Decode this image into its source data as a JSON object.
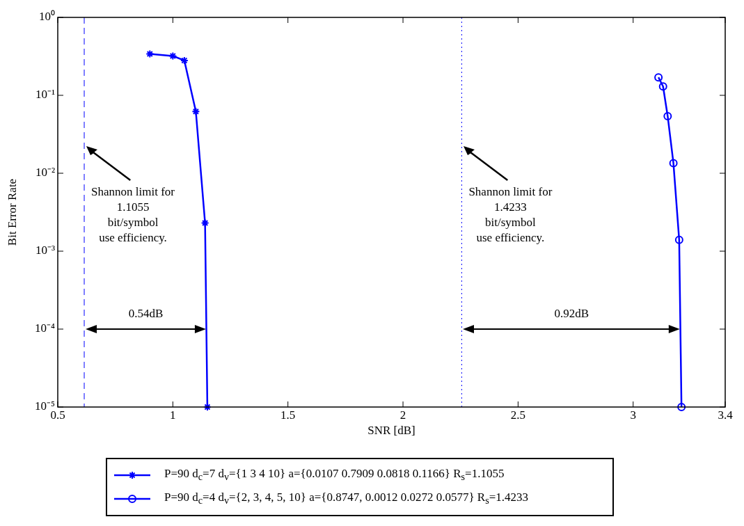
{
  "chart_data": {
    "type": "line",
    "xlabel": "SNR [dB]",
    "ylabel": "Bit Error Rate",
    "log": "y",
    "xlim": [
      0.5,
      3.4
    ],
    "xticks": [
      0.5,
      1,
      1.5,
      2,
      2.5,
      3,
      3.4
    ],
    "ylim": [
      1e-05,
      1
    ],
    "yticks": [
      {
        "value": 1,
        "label": "10⁰"
      },
      {
        "value": 0.1,
        "label": "10⁻¹"
      },
      {
        "value": 0.01,
        "label": "10⁻²"
      },
      {
        "value": 0.001,
        "label": "10⁻³"
      },
      {
        "value": 0.0001,
        "label": "10⁻⁴"
      },
      {
        "value": 1e-05,
        "label": "10⁻⁵"
      }
    ],
    "grid": false,
    "legend": "bottom",
    "line_style": "solid",
    "series": [
      {
        "name": "P=90 d$_{c}$=7 d$_{v}$={1 3 4 10} a={0.0107 0.7909 0.0818 0.1166} R$_{s}$=1.1055",
        "color": "#0000ff",
        "marker": "cross",
        "x": [
          0.9,
          1.0,
          1.05,
          1.1,
          1.14,
          1.15
        ],
        "values": [
          0.34,
          0.32,
          0.28,
          0.062,
          0.0023,
          1e-05
        ]
      },
      {
        "name": "P=90 d$_{c}$=4 d$_{v}$={2, 3, 4, 5, 10} a={0.8747, 0.0012 0.0272 0.0577} R$_{s}$=1.4233",
        "color": "#0000ff",
        "marker": "circle",
        "x": [
          3.11,
          3.13,
          3.15,
          3.175,
          3.2,
          3.21
        ],
        "values": [
          0.17,
          0.13,
          0.054,
          0.0135,
          0.0014,
          1e-05
        ]
      }
    ],
    "ref_lines": [
      {
        "axis": "x",
        "value": 0.615,
        "color": "#0000ff",
        "line_style": "dashed"
      },
      {
        "axis": "x",
        "value": 2.255,
        "color": "#0000ff",
        "line_style": "dotted"
      }
    ],
    "annotations": [
      "Shannon limit for\n1.1055\nbit/symbol\nuse efficiency.",
      "Shannon limit for\n1.4233\nbit/symbol\nuse efficiency.",
      "0.54dB",
      "0.92dB"
    ]
  }
}
